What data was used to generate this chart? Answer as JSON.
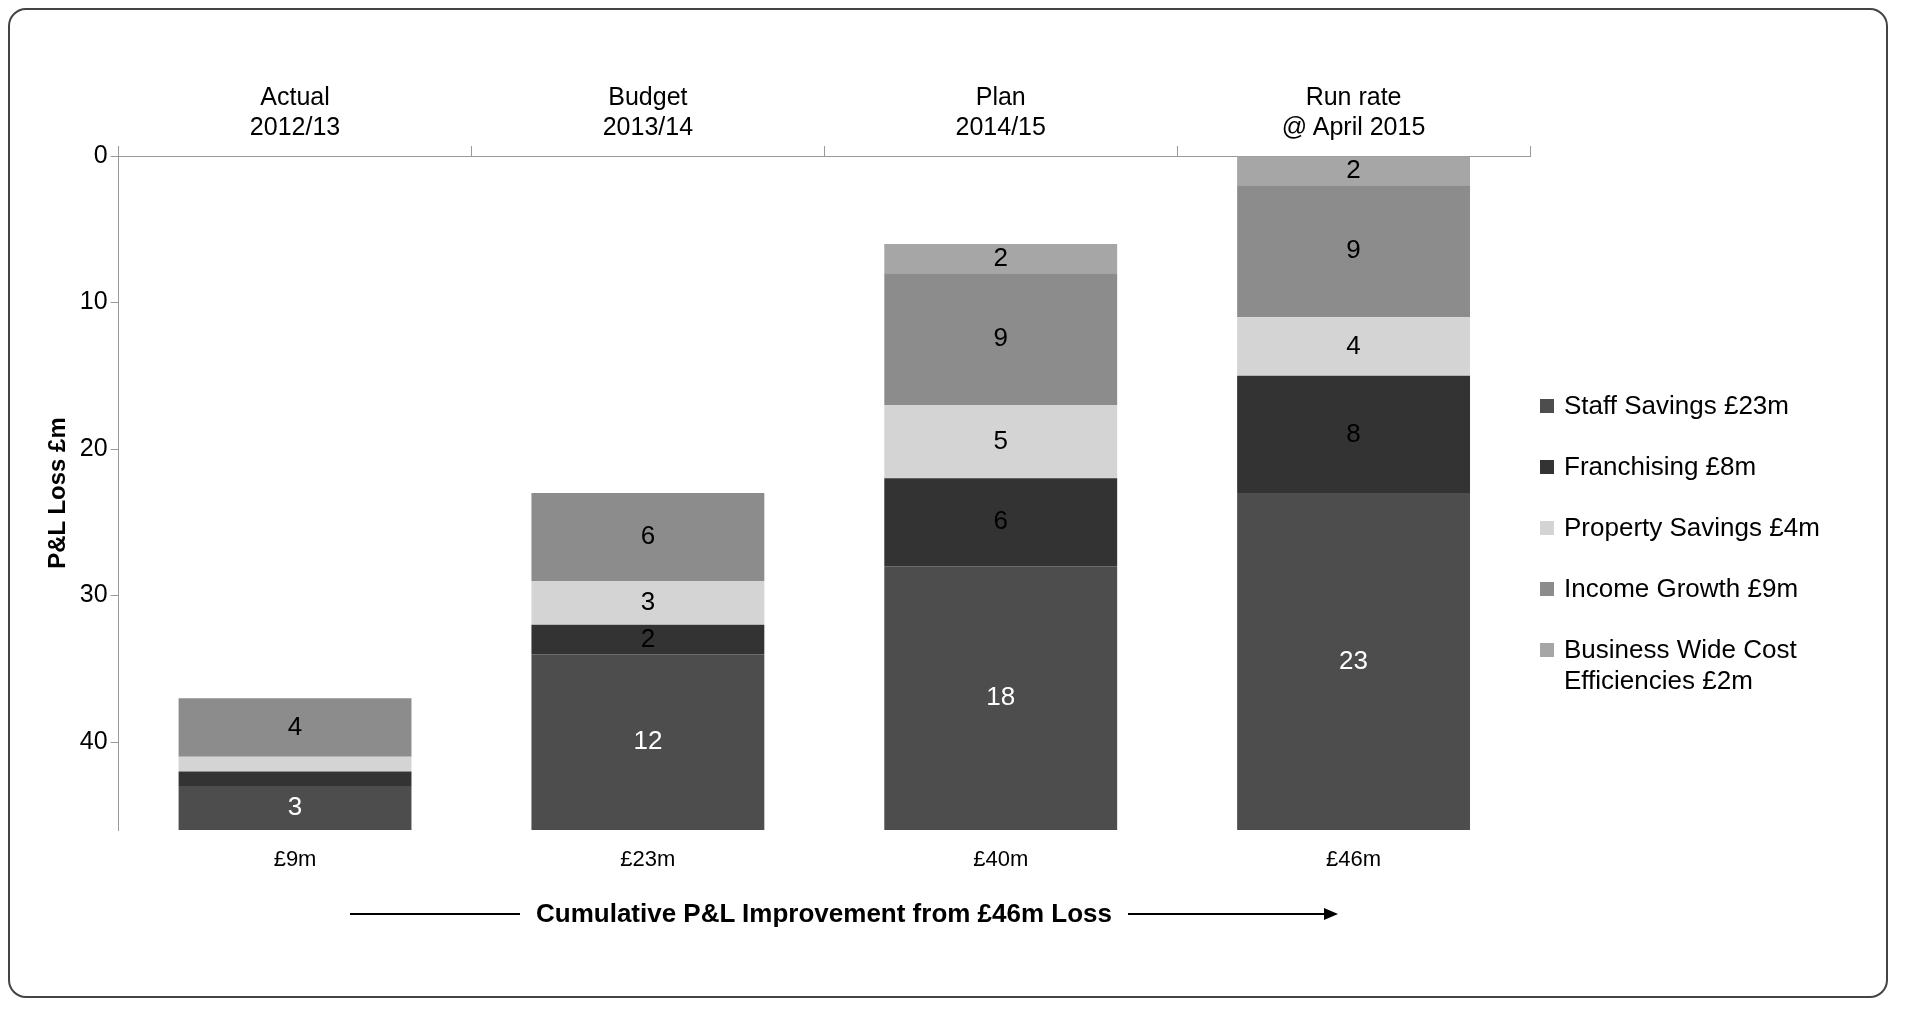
{
  "chart_data": {
    "type": "bar",
    "categories": [
      "Actual\n2012/13",
      "Budget\n2013/14",
      "Plan\n2014/15",
      "Run rate\n@ April 2015"
    ],
    "series": [
      {
        "name": "Staff Savings £23m",
        "color": "#4d4d4d",
        "values": [
          3,
          12,
          18,
          23
        ],
        "base": [
          43,
          34,
          28,
          23
        ],
        "value_labels": [
          "3",
          "12",
          "18",
          "23"
        ]
      },
      {
        "name": "Franchising £8m",
        "color": "#333333",
        "values": [
          1,
          2,
          6,
          8
        ],
        "base": [
          42,
          32,
          22,
          15
        ],
        "value_labels": [
          null,
          "2",
          "6",
          "8"
        ]
      },
      {
        "name": "Property Savings £4m",
        "color": "#d4d4d4",
        "values": [
          1,
          3,
          5,
          4
        ],
        "base": [
          41,
          29,
          17,
          11
        ],
        "value_labels": [
          null,
          "3",
          "5",
          "4"
        ]
      },
      {
        "name": "Income Growth £9m",
        "color": "#8c8c8c",
        "values": [
          4,
          6,
          9,
          9
        ],
        "base": [
          37,
          23,
          8,
          2
        ],
        "value_labels": [
          "4",
          "6",
          "9",
          "9"
        ]
      },
      {
        "name": "Business Wide Cost Efficiencies £2m",
        "color": "#a6a6a6",
        "values": [
          null,
          null,
          2,
          2
        ],
        "base": [
          null,
          null,
          6,
          0
        ],
        "value_labels": [
          null,
          null,
          "2",
          "2"
        ]
      }
    ],
    "ylim": [
      46,
      0
    ],
    "yticks": [
      0,
      10,
      20,
      30,
      40
    ],
    "ylabel": "P&L Loss £m",
    "xlabel": "Cumulative P&L Improvement from £46m Loss",
    "annotations": [
      "£9m",
      "£23m",
      "£40m",
      "£46m"
    ],
    "legend": "right",
    "grid": false
  }
}
